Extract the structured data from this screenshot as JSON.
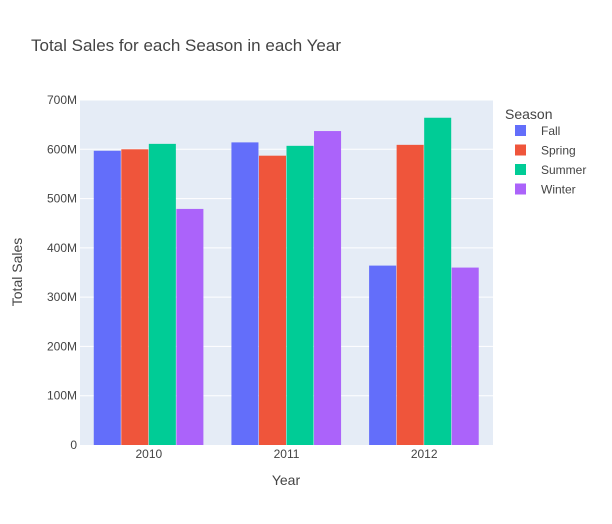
{
  "chart_data": {
    "type": "bar",
    "title": "Total Sales for each Season in each Year",
    "xlabel": "Year",
    "ylabel": "Total Sales",
    "categories": [
      "2010",
      "2011",
      "2012"
    ],
    "ylim": [
      0,
      700000000
    ],
    "yticks": [
      {
        "value": 0,
        "label": "0"
      },
      {
        "value": 100000000,
        "label": "100M"
      },
      {
        "value": 200000000,
        "label": "200M"
      },
      {
        "value": 300000000,
        "label": "300M"
      },
      {
        "value": 400000000,
        "label": "400M"
      },
      {
        "value": 500000000,
        "label": "500M"
      },
      {
        "value": 600000000,
        "label": "600M"
      },
      {
        "value": 700000000,
        "label": "700M"
      }
    ],
    "grid": true,
    "legend": {
      "title": "Season",
      "placement": "right"
    },
    "series": [
      {
        "name": "Fall",
        "color": "#636efa",
        "values": [
          597000000,
          614000000,
          364000000
        ]
      },
      {
        "name": "Spring",
        "color": "#ef553b",
        "values": [
          600000000,
          587000000,
          609000000
        ]
      },
      {
        "name": "Summer",
        "color": "#00cc96",
        "values": [
          611000000,
          607000000,
          664000000
        ]
      },
      {
        "name": "Winter",
        "color": "#ab63fa",
        "values": [
          479000000,
          637000000,
          360000000
        ]
      }
    ]
  }
}
